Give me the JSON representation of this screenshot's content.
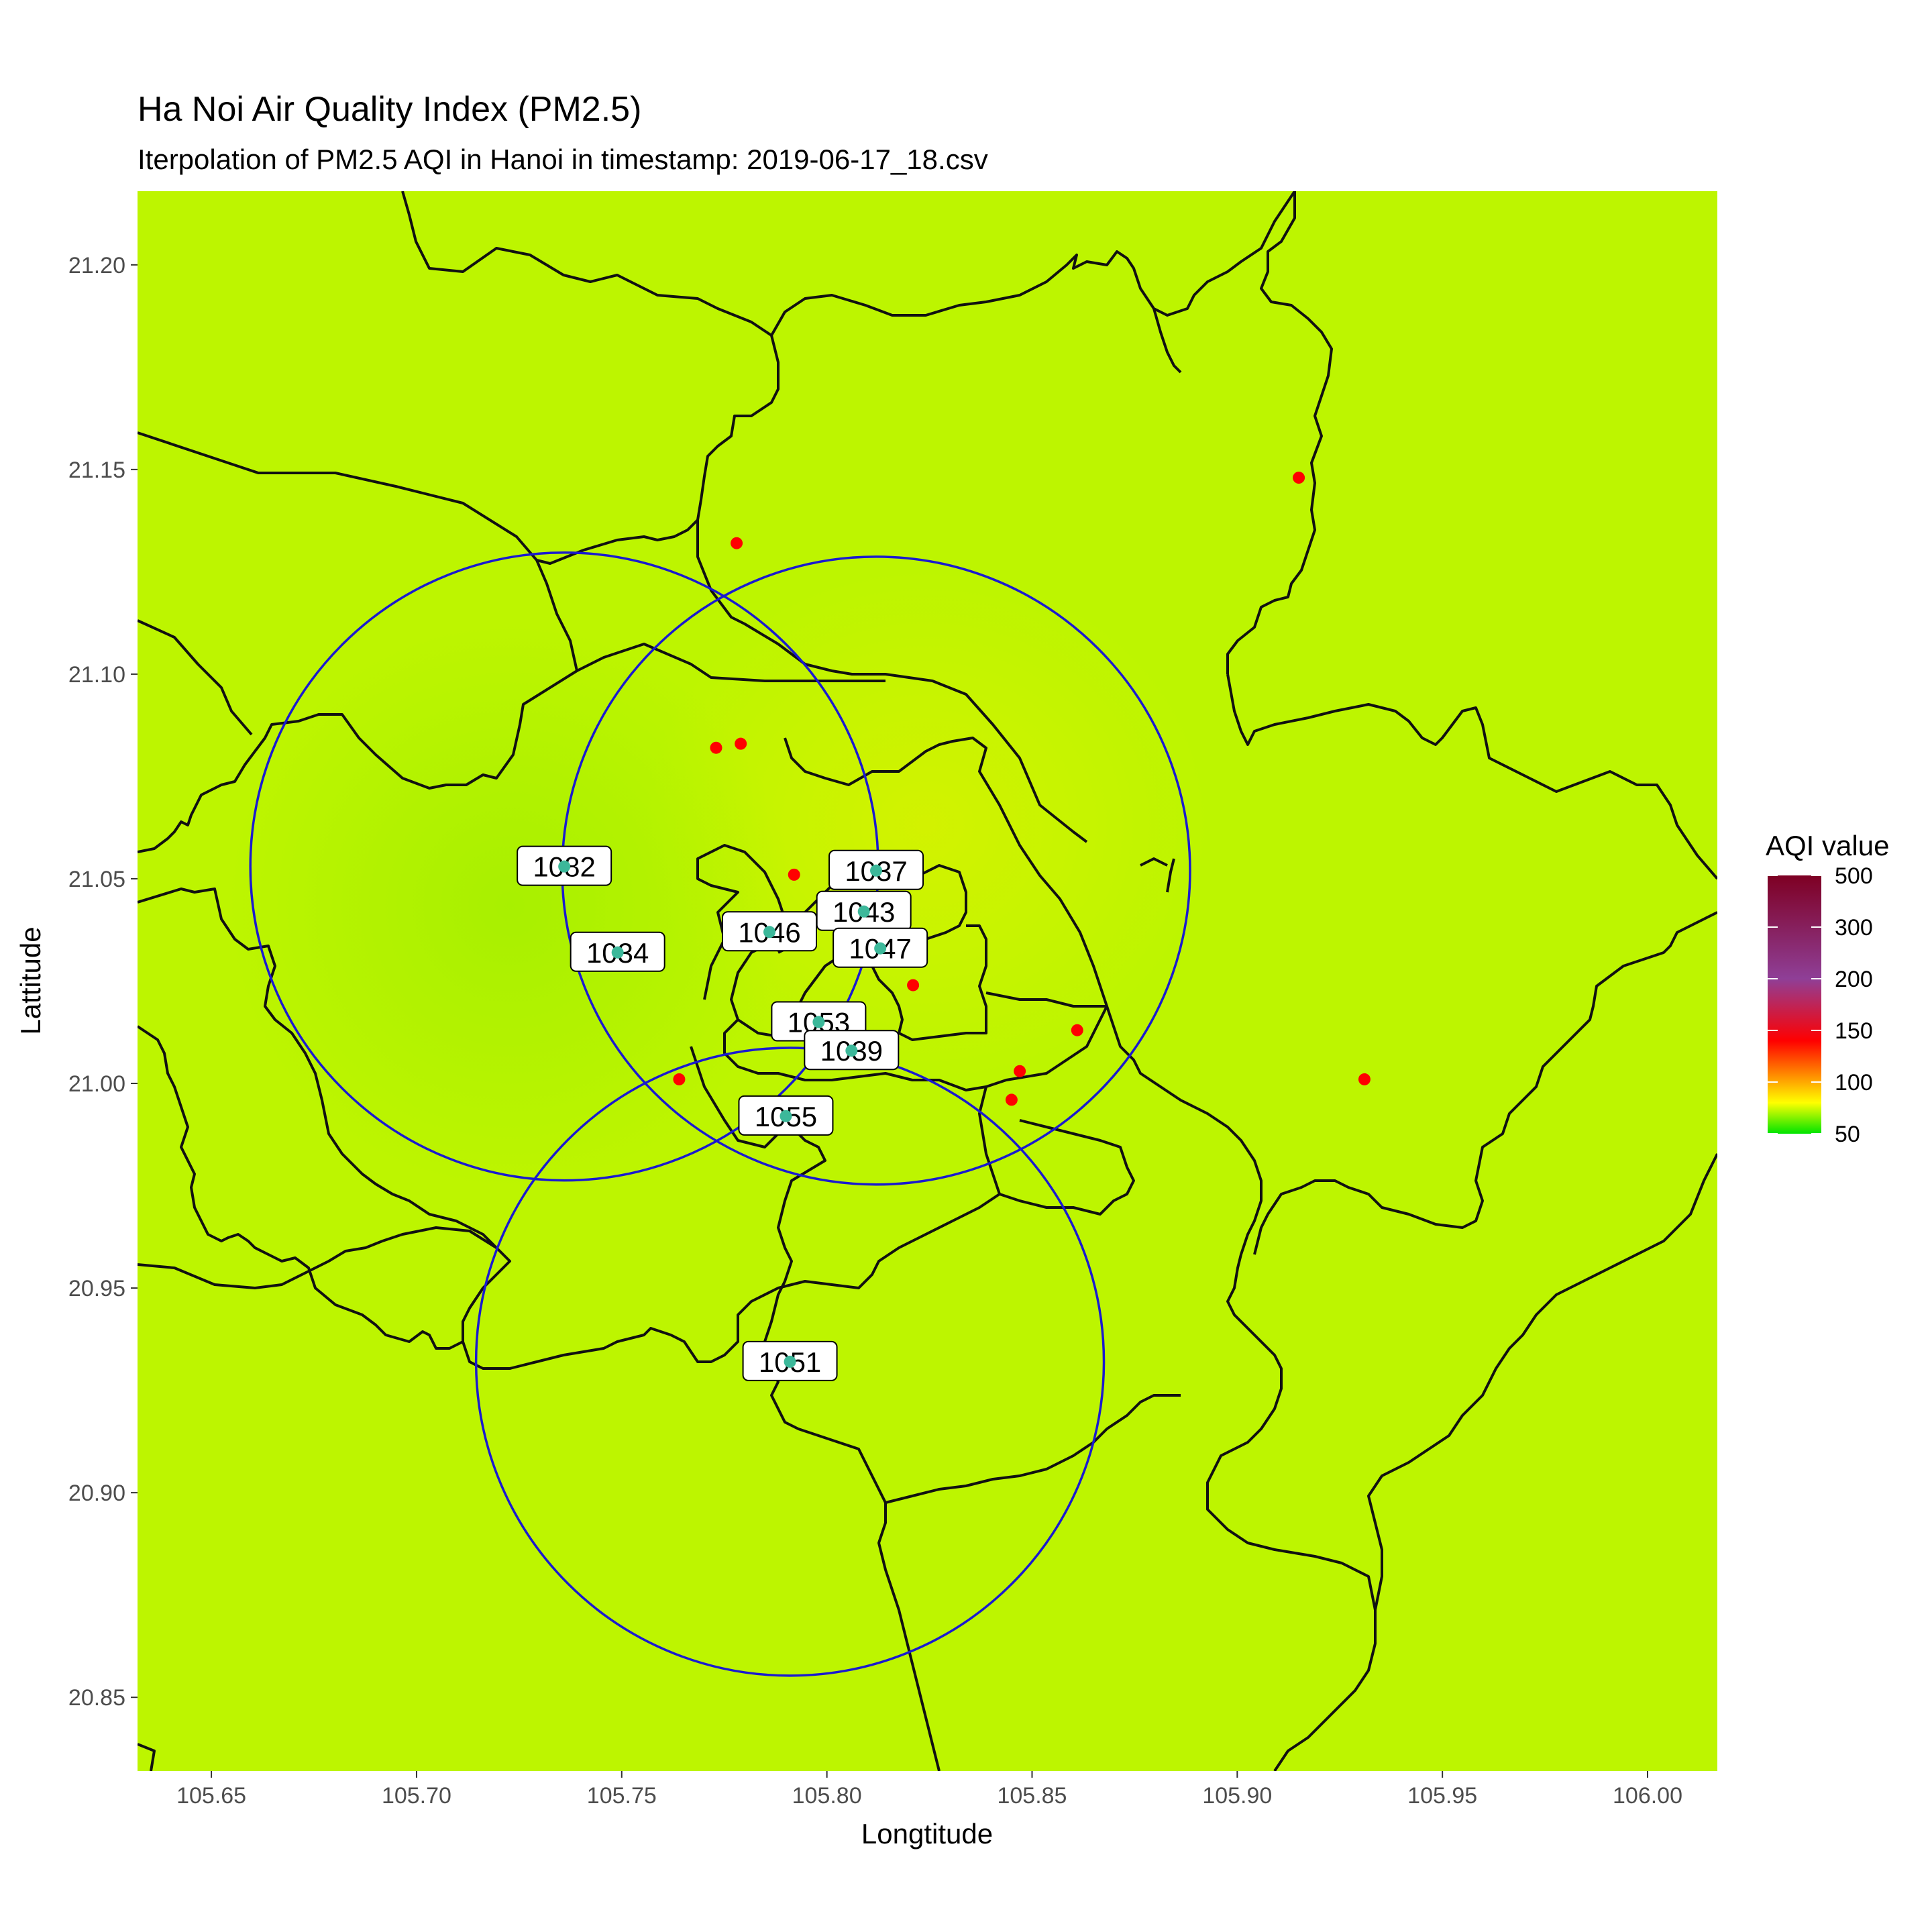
{
  "chart_data": {
    "type": "map",
    "title": "Ha Noi Air Quality Index (PM2.5)",
    "subtitle": "Iterpolation of PM2.5 AQI in Hanoi in timestamp:  2019-06-17_18.csv",
    "xlabel": "Longtitude",
    "ylabel": "Lattitude",
    "xlim": [
      105.632,
      106.017
    ],
    "ylim": [
      20.832,
      21.218
    ],
    "x_ticks": [
      "105.65",
      "105.70",
      "105.75",
      "105.80",
      "105.85",
      "105.90",
      "105.95",
      "106.00"
    ],
    "y_ticks": [
      "20.85",
      "20.90",
      "20.95",
      "21.00",
      "21.05",
      "21.10",
      "21.15",
      "21.20"
    ],
    "grid": false,
    "legend": {
      "title": "AQI value",
      "placement": "right",
      "breaks": [
        "500",
        "300",
        "200",
        "150",
        "100",
        "50"
      ],
      "break_values": [
        500,
        300,
        200,
        150,
        100,
        50
      ],
      "colors": [
        "#7e0023",
        "#8f3f97",
        "#ff0000",
        "#ff7e00",
        "#ffff00",
        "#00e400"
      ]
    },
    "fill_color": "#bdf500",
    "stations": [
      {
        "id": "1082",
        "lon": 105.736,
        "lat": 21.053
      },
      {
        "id": "1034",
        "lon": 105.749,
        "lat": 21.032
      },
      {
        "id": "1037",
        "lon": 105.812,
        "lat": 21.052
      },
      {
        "id": "1043",
        "lon": 105.809,
        "lat": 21.042
      },
      {
        "id": "1046",
        "lon": 105.786,
        "lat": 21.037
      },
      {
        "id": "1047",
        "lon": 105.813,
        "lat": 21.033
      },
      {
        "id": "1053",
        "lon": 105.798,
        "lat": 21.015
      },
      {
        "id": "1039",
        "lon": 105.806,
        "lat": 21.008
      },
      {
        "id": "1055",
        "lon": 105.79,
        "lat": 20.992
      },
      {
        "id": "1051",
        "lon": 105.791,
        "lat": 20.932
      }
    ],
    "station_color": "#3cb89a",
    "red_points": [
      {
        "lon": 105.778,
        "lat": 21.132
      },
      {
        "lon": 105.915,
        "lat": 21.148
      },
      {
        "lon": 105.773,
        "lat": 21.082
      },
      {
        "lon": 105.779,
        "lat": 21.083
      },
      {
        "lon": 105.792,
        "lat": 21.051
      },
      {
        "lon": 105.785,
        "lat": 21.037
      },
      {
        "lon": 105.818,
        "lat": 21.031
      },
      {
        "lon": 105.821,
        "lat": 21.024
      },
      {
        "lon": 105.795,
        "lat": 21.018
      },
      {
        "lon": 105.861,
        "lat": 21.013
      },
      {
        "lon": 105.764,
        "lat": 21.001
      },
      {
        "lon": 105.847,
        "lat": 21.003
      },
      {
        "lon": 105.845,
        "lat": 20.996
      },
      {
        "lon": 105.931,
        "lat": 21.001
      }
    ],
    "red_color": "#ff0000",
    "buffer_circles": [
      {
        "lon": 105.736,
        "lat": 21.053,
        "radius_deg": 0.0765
      },
      {
        "lon": 105.812,
        "lat": 21.052,
        "radius_deg": 0.0765
      },
      {
        "lon": 105.791,
        "lat": 20.932,
        "radius_deg": 0.0765
      }
    ],
    "circle_color": "#1a1ad0"
  }
}
